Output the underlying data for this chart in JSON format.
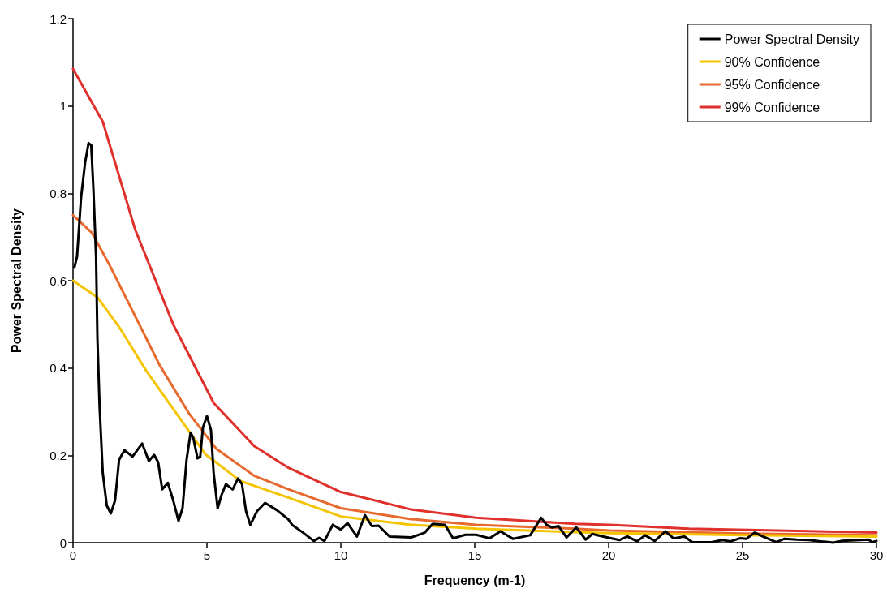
{
  "chart_data": {
    "type": "line",
    "xlabel": "Frequency (m-1)",
    "ylabel": "Power Spectral Density",
    "xlim": [
      0,
      30
    ],
    "xticks": [
      0,
      5,
      10,
      15,
      20,
      25,
      30
    ],
    "ylim": [
      0,
      1.2
    ],
    "yticks": [
      0,
      0.2,
      0.4,
      0.6,
      0.8,
      1,
      1.2
    ],
    "grid": false,
    "legend": "top right",
    "marker": "none",
    "line_style": "solid",
    "series": [
      {
        "name": "Power Spectral Density",
        "color": "#000000",
        "x": [
          0.05,
          0.15,
          0.3,
          0.45,
          0.58,
          0.68,
          0.76,
          0.86,
          0.91,
          0.99,
          1.11,
          1.26,
          1.41,
          1.57,
          1.72,
          1.92,
          2.22,
          2.58,
          2.83,
          3.03,
          3.18,
          3.33,
          3.54,
          3.74,
          3.94,
          4.09,
          4.24,
          4.39,
          4.49,
          4.65,
          4.75,
          4.85,
          5.0,
          5.15,
          5.25,
          5.4,
          5.55,
          5.71,
          5.96,
          6.16,
          6.31,
          6.46,
          6.62,
          6.87,
          7.17,
          7.6,
          8.03,
          8.18,
          8.59,
          8.99,
          9.19,
          9.39,
          9.7,
          10.0,
          10.25,
          10.6,
          10.9,
          11.16,
          11.41,
          11.82,
          12.63,
          13.13,
          13.43,
          13.89,
          14.19,
          14.65,
          15.05,
          15.56,
          15.96,
          16.42,
          17.07,
          17.48,
          17.68,
          17.88,
          18.13,
          18.43,
          18.79,
          19.14,
          19.39,
          19.8,
          20.4,
          20.7,
          21.06,
          21.36,
          21.72,
          22.12,
          22.42,
          22.83,
          23.13,
          23.84,
          24.24,
          24.55,
          24.9,
          25.15,
          25.45,
          25.76,
          26.26,
          26.57,
          27.02,
          27.48,
          27.93,
          28.38,
          28.69,
          29.39,
          29.7,
          29.85,
          30
        ],
        "values": [
          0.63,
          0.655,
          0.79,
          0.87,
          0.915,
          0.91,
          0.81,
          0.655,
          0.47,
          0.314,
          0.16,
          0.085,
          0.067,
          0.097,
          0.19,
          0.212,
          0.197,
          0.227,
          0.187,
          0.201,
          0.184,
          0.122,
          0.137,
          0.097,
          0.05,
          0.079,
          0.19,
          0.252,
          0.24,
          0.193,
          0.197,
          0.264,
          0.29,
          0.258,
          0.16,
          0.079,
          0.11,
          0.134,
          0.122,
          0.147,
          0.134,
          0.072,
          0.041,
          0.072,
          0.091,
          0.075,
          0.054,
          0.041,
          0.023,
          0.004,
          0.011,
          0.004,
          0.041,
          0.03,
          0.045,
          0.014,
          0.063,
          0.038,
          0.039,
          0.014,
          0.012,
          0.023,
          0.043,
          0.041,
          0.01,
          0.018,
          0.018,
          0.01,
          0.026,
          0.009,
          0.017,
          0.057,
          0.041,
          0.035,
          0.038,
          0.012,
          0.035,
          0.007,
          0.02,
          0.014,
          0.006,
          0.014,
          0.003,
          0.017,
          0.004,
          0.026,
          0.01,
          0.014,
          0.001,
          0.001,
          0.006,
          0.003,
          0.01,
          0.009,
          0.023,
          0.014,
          0.001,
          0.009,
          0.007,
          0.006,
          0.003,
          0.0,
          0.004,
          0.006,
          0.007,
          0.001,
          0.004
        ]
      },
      {
        "name": "90% Confidence",
        "color": "#f5c400",
        "x": [
          0,
          0.91,
          1.72,
          2.73,
          3.94,
          4.95,
          6.26,
          8.06,
          10,
          12.63,
          15.05,
          18.74,
          20,
          25,
          30
        ],
        "values": [
          0.6,
          0.562,
          0.494,
          0.394,
          0.289,
          0.202,
          0.141,
          0.103,
          0.06,
          0.041,
          0.032,
          0.024,
          0.022,
          0.017,
          0.014
        ]
      },
      {
        "name": "95% Confidence",
        "color": "#e8692e",
        "x": [
          0,
          0.7,
          1.36,
          2.22,
          3.23,
          4.34,
          5.35,
          6.77,
          8.06,
          10,
          12.63,
          15.05,
          18.74,
          20,
          25,
          30
        ],
        "values": [
          0.75,
          0.71,
          0.636,
          0.531,
          0.407,
          0.295,
          0.215,
          0.153,
          0.122,
          0.079,
          0.054,
          0.041,
          0.032,
          0.028,
          0.021,
          0.017
        ]
      },
      {
        "name": "99% Confidence",
        "color": "#e0302c",
        "x": [
          0,
          1.11,
          2.32,
          3.74,
          5.25,
          6.77,
          8.06,
          10,
          12.63,
          15.05,
          18.74,
          20,
          23,
          30
        ],
        "values": [
          1.085,
          0.964,
          0.717,
          0.5,
          0.32,
          0.221,
          0.171,
          0.116,
          0.076,
          0.057,
          0.043,
          0.041,
          0.032,
          0.023
        ]
      }
    ]
  }
}
